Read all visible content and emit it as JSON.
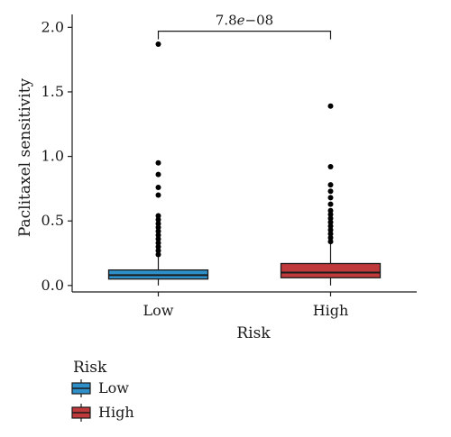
{
  "chart_data": {
    "type": "box",
    "xlabel": "Risk",
    "ylabel": "Paclitaxel sensitivity",
    "ylim": [
      -0.05,
      2.1
    ],
    "yticks": [
      0.0,
      0.5,
      1.0,
      1.5,
      2.0
    ],
    "ytick_labels": [
      "0.0",
      "0.5",
      "1.0",
      "1.5",
      "2.0"
    ],
    "categories": [
      "Low",
      "High"
    ],
    "series": [
      {
        "name": "Low",
        "color": "#2e8fc9",
        "min": 0.0,
        "q1": 0.05,
        "median": 0.08,
        "q3": 0.12,
        "whisker_high": 0.22,
        "outliers": [
          0.24,
          0.27,
          0.3,
          0.33,
          0.36,
          0.39,
          0.42,
          0.45,
          0.48,
          0.51,
          0.54,
          0.7,
          0.76,
          0.86,
          0.95,
          1.87
        ]
      },
      {
        "name": "High",
        "color": "#c0393b",
        "min": 0.0,
        "q1": 0.06,
        "median": 0.1,
        "q3": 0.17,
        "whisker_high": 0.32,
        "outliers": [
          0.34,
          0.37,
          0.4,
          0.43,
          0.46,
          0.49,
          0.52,
          0.55,
          0.58,
          0.63,
          0.68,
          0.73,
          0.78,
          0.92,
          1.39
        ]
      }
    ],
    "annotation": {
      "text": "7.8e−08",
      "mantissa": "7.8",
      "letter": "e",
      "exponent": "−08",
      "y": 1.97
    },
    "legend": {
      "title": "Risk",
      "position": "bottom-left",
      "items": [
        "Low",
        "High"
      ]
    },
    "grid": false
  }
}
